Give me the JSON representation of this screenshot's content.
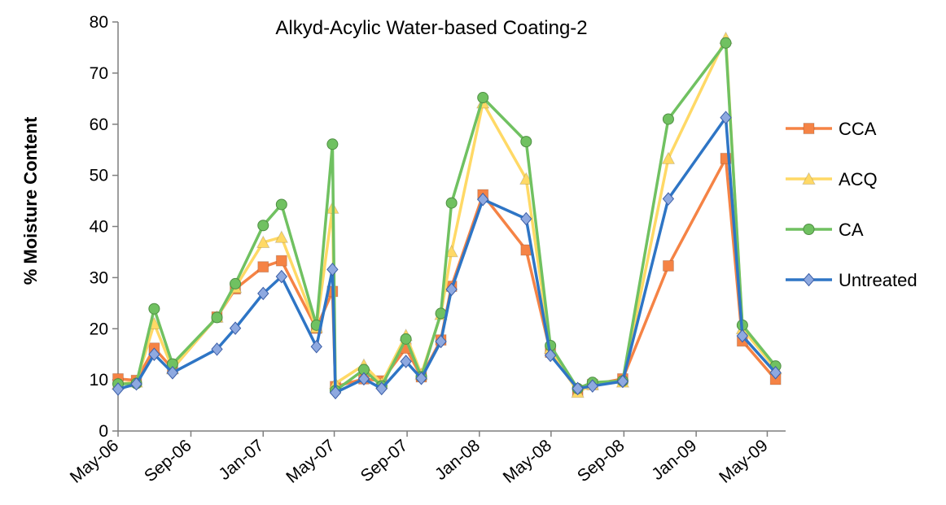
{
  "chart_data": {
    "type": "line",
    "title": "Alkyd-Acylic Water-based Coating-2",
    "ylabel": "% Moisture Content",
    "xlabel": "",
    "ylim": [
      0,
      80
    ],
    "yticks": [
      0,
      10,
      20,
      30,
      40,
      50,
      60,
      70,
      80
    ],
    "xlim": [
      "2006-05-01",
      "2009-06-01"
    ],
    "xticks": [
      {
        "date": "2006-05-01",
        "label": "May-06"
      },
      {
        "date": "2006-09-01",
        "label": "Sep-06"
      },
      {
        "date": "2007-01-01",
        "label": "Jan-07"
      },
      {
        "date": "2007-05-01",
        "label": "May-07"
      },
      {
        "date": "2007-09-01",
        "label": "Sep-07"
      },
      {
        "date": "2008-01-01",
        "label": "Jan-08"
      },
      {
        "date": "2008-05-01",
        "label": "May-08"
      },
      {
        "date": "2008-09-01",
        "label": "Sep-08"
      },
      {
        "date": "2009-01-01",
        "label": "Jan-09"
      },
      {
        "date": "2009-05-01",
        "label": "May-09"
      }
    ],
    "x": [
      "2006-05-01",
      "2006-06-01",
      "2006-07-01",
      "2006-08-01",
      "2006-10-15",
      "2006-11-15",
      "2007-01-01",
      "2007-02-01",
      "2007-04-01",
      "2007-04-28",
      "2007-05-03",
      "2007-06-20",
      "2007-07-20",
      "2007-08-30",
      "2007-09-25",
      "2007-10-28",
      "2007-11-15",
      "2008-01-07",
      "2008-03-20",
      "2008-04-30",
      "2008-06-15",
      "2008-07-10",
      "2008-08-30",
      "2008-11-15",
      "2009-02-20",
      "2009-03-20",
      "2009-05-15"
    ],
    "series": [
      {
        "name": "CCA",
        "color": "#f58345",
        "marker": "square",
        "values": [
          10.2,
          9.9,
          16.2,
          12.2,
          22.3,
          27.8,
          32.1,
          33.3,
          20.1,
          27.3,
          8.7,
          10.2,
          9.8,
          16.2,
          10.6,
          17.8,
          28.3,
          46.2,
          35.4,
          15.4,
          7.9,
          9.1,
          10.2,
          32.3,
          53.3,
          17.6,
          10.1
        ]
      },
      {
        "name": "ACQ",
        "color": "#ffd966",
        "marker": "triangle",
        "values": [
          9.2,
          9.6,
          21.0,
          12.2,
          22.3,
          28.1,
          36.9,
          37.9,
          20.3,
          43.6,
          9.3,
          12.9,
          9.3,
          18.7,
          11.1,
          22.8,
          35.1,
          64.2,
          49.3,
          16.2,
          7.6,
          9.1,
          9.6,
          53.3,
          76.8,
          20.0,
          12.2
        ]
      },
      {
        "name": "CA",
        "color": "#70c161",
        "marker": "circle",
        "values": [
          9.2,
          9.3,
          23.9,
          13.1,
          22.2,
          28.8,
          40.2,
          44.3,
          20.7,
          56.1,
          7.9,
          12.0,
          8.8,
          18.0,
          10.6,
          23.0,
          44.6,
          65.2,
          56.6,
          16.7,
          8.3,
          9.5,
          9.8,
          61.0,
          75.9,
          20.7,
          12.7
        ]
      },
      {
        "name": "Untreated",
        "color": "#2e75c5",
        "marker": "diamond",
        "values": [
          8.2,
          9.2,
          15.0,
          11.4,
          16.0,
          20.1,
          26.9,
          30.2,
          16.5,
          31.6,
          7.5,
          10.2,
          8.3,
          13.6,
          10.3,
          17.5,
          27.7,
          45.3,
          41.5,
          14.8,
          8.3,
          8.8,
          9.7,
          45.4,
          61.3,
          18.6,
          11.4
        ]
      }
    ],
    "grid": false,
    "legend_position": "right"
  }
}
